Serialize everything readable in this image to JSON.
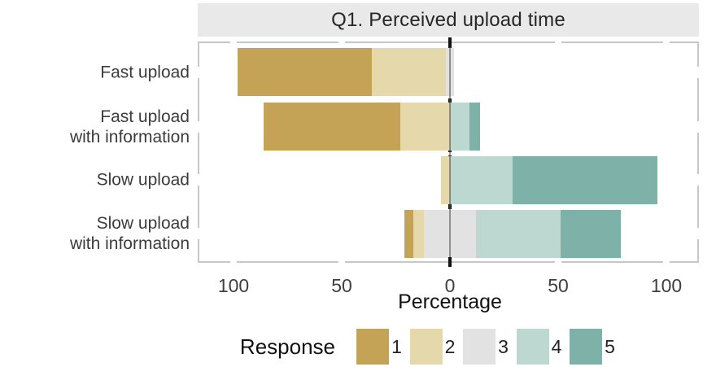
{
  "chart_data": {
    "type": "bar",
    "variant": "diverging-stacked-horizontal-likert",
    "title": "Q1. Perceived upload time",
    "xlabel": "Percentage",
    "legend_title": "Response",
    "legend_position": "bottom",
    "legend_labels": [
      "1",
      "2",
      "3",
      "4",
      "5"
    ],
    "colors": [
      "#C4A356",
      "#E5D9AC",
      "#E2E2E2",
      "#BCD8D1",
      "#7EB1A8"
    ],
    "color_names": [
      "response-1-gold",
      "response-2-tan",
      "response-3-gray",
      "response-4-light-teal",
      "response-5-teal"
    ],
    "categories": [
      "Fast upload",
      "Fast upload\nwith information",
      "Slow upload",
      "Slow upload\nwith information"
    ],
    "series": [
      {
        "name": "1",
        "values": [
          62,
          63,
          0,
          4
        ]
      },
      {
        "name": "2",
        "values": [
          34,
          23,
          4,
          5
        ]
      },
      {
        "name": "3",
        "values": [
          4,
          0,
          0,
          24
        ]
      },
      {
        "name": "4",
        "values": [
          0,
          9,
          29,
          39
        ]
      },
      {
        "name": "5",
        "values": [
          0,
          5,
          67,
          28
        ]
      }
    ],
    "neutral_category_index": 2,
    "neutral_centered_on_zero": true,
    "x_ticks": [
      -100,
      -50,
      0,
      50,
      100
    ],
    "x_tick_labels": [
      "100",
      "50",
      "0",
      "50",
      "100"
    ],
    "xlim": [
      -117,
      115
    ],
    "grid": false,
    "zero_reference_line": "black-dashed",
    "panel_strip_background": "#E9E9E9",
    "panel_border_color": "#C7C7C7",
    "units": "percent"
  }
}
